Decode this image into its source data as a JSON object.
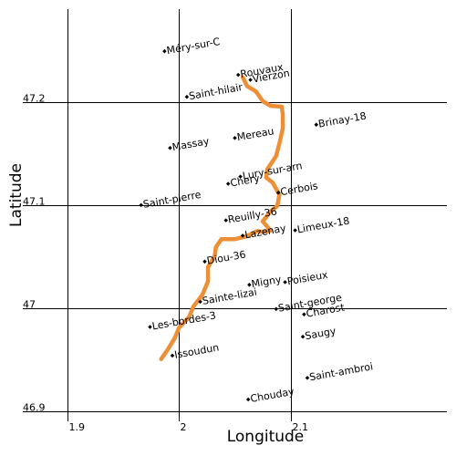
{
  "chart_data": {
    "type": "map",
    "xlabel": "Longitude",
    "ylabel": "Latitude",
    "xlim": [
      1.86,
      2.24
    ],
    "ylim": [
      46.89,
      47.2904
    ],
    "xticks": [
      1.9,
      2.0,
      2.1
    ],
    "xtick_labels": [
      "1.9",
      "2",
      "2.1"
    ],
    "yticks": [
      46.9,
      47.0,
      47.1,
      47.2
    ],
    "ytick_labels": [
      "46.9",
      "47",
      "47.1",
      "47.2"
    ],
    "grid": true,
    "label_rotation_deg": -10,
    "route_color": "#ee8f35",
    "places": [
      {
        "name": "Méry-sur-C",
        "lon": 1.987,
        "lat": 47.2495
      },
      {
        "name": "Rouvaux",
        "lon": 2.053,
        "lat": 47.2265
      },
      {
        "name": "Vierzon",
        "lon": 2.064,
        "lat": 47.2217
      },
      {
        "name": "Saint-hilair",
        "lon": 2.007,
        "lat": 47.2052
      },
      {
        "name": "Brinay-18",
        "lon": 2.123,
        "lat": 47.1782
      },
      {
        "name": "Mereau",
        "lon": 2.05,
        "lat": 47.1652
      },
      {
        "name": "Massay",
        "lon": 1.992,
        "lat": 47.1556
      },
      {
        "name": "Lury-sur-arn",
        "lon": 2.055,
        "lat": 47.1278
      },
      {
        "name": "Chery",
        "lon": 2.044,
        "lat": 47.1208
      },
      {
        "name": "Cerbois",
        "lon": 2.089,
        "lat": 47.1121
      },
      {
        "name": "Saint-pierre",
        "lon": 1.966,
        "lat": 47.1
      },
      {
        "name": "Reuilly-36",
        "lon": 2.042,
        "lat": 47.0852
      },
      {
        "name": "Lazenay",
        "lon": 2.057,
        "lat": 47.0704
      },
      {
        "name": "Limeux-18",
        "lon": 2.104,
        "lat": 47.0756
      },
      {
        "name": "Diou-36",
        "lon": 2.023,
        "lat": 47.0452
      },
      {
        "name": "Migny",
        "lon": 2.063,
        "lat": 47.0226
      },
      {
        "name": "Poisieux",
        "lon": 2.095,
        "lat": 47.0252
      },
      {
        "name": "Sainte-lizai",
        "lon": 2.019,
        "lat": 47.0061
      },
      {
        "name": "Saint-george",
        "lon": 2.087,
        "lat": 46.9991
      },
      {
        "name": "Charost",
        "lon": 2.112,
        "lat": 46.9939
      },
      {
        "name": "Les-bordes-3",
        "lon": 1.974,
        "lat": 46.9817
      },
      {
        "name": "Saugy",
        "lon": 2.111,
        "lat": 46.9722
      },
      {
        "name": "Issoudun",
        "lon": 1.994,
        "lat": 46.9539
      },
      {
        "name": "Saint-ambroi",
        "lon": 2.115,
        "lat": 46.9322
      },
      {
        "name": "Chouday",
        "lon": 2.062,
        "lat": 46.9113
      }
    ],
    "route": [
      [
        2.057,
        47.2243
      ],
      [
        2.061,
        47.2156
      ],
      [
        2.069,
        47.2104
      ],
      [
        2.075,
        47.2009
      ],
      [
        2.082,
        47.1965
      ],
      [
        2.092,
        47.1956
      ],
      [
        2.093,
        47.1878
      ],
      [
        2.093,
        47.1748
      ],
      [
        2.09,
        47.16
      ],
      [
        2.087,
        47.1478
      ],
      [
        2.079,
        47.1348
      ],
      [
        2.078,
        47.1269
      ],
      [
        2.084,
        47.1217
      ],
      [
        2.09,
        47.11
      ],
      [
        2.088,
        47.0991
      ],
      [
        2.082,
        47.0939
      ],
      [
        2.075,
        47.0843
      ],
      [
        2.082,
        47.0752
      ],
      [
        2.075,
        47.0739
      ],
      [
        2.07,
        47.0748
      ],
      [
        2.06,
        47.0696
      ],
      [
        2.05,
        47.067
      ],
      [
        2.038,
        47.067
      ],
      [
        2.033,
        47.0591
      ],
      [
        2.032,
        47.0504
      ],
      [
        2.026,
        47.04
      ],
      [
        2.026,
        47.0261
      ],
      [
        2.021,
        47.013
      ],
      [
        2.013,
        47.0017
      ],
      [
        2.009,
        46.9913
      ],
      [
        2.0,
        46.9809
      ],
      [
        1.996,
        46.9704
      ],
      [
        1.99,
        46.96
      ],
      [
        1.984,
        46.9504
      ]
    ]
  }
}
